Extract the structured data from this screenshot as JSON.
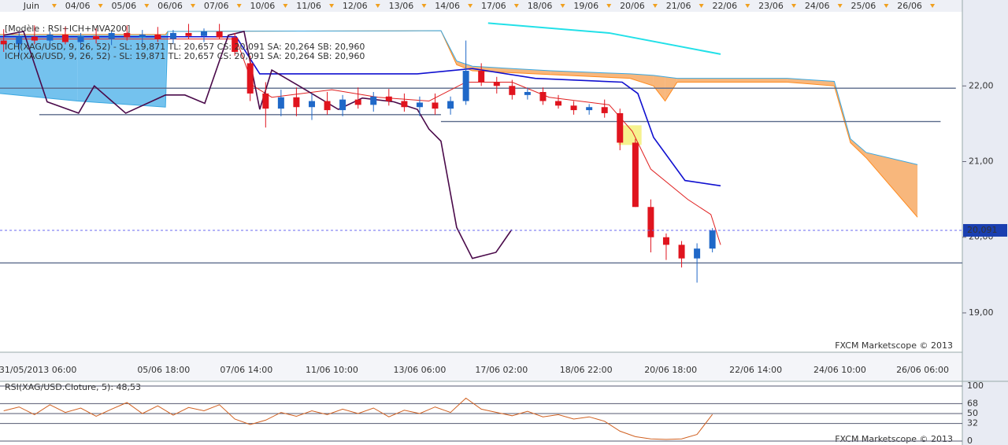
{
  "chart_data": {
    "type": "candlestick",
    "title": "[Modèle : RSI+ICH+MVA200]",
    "legend_lines": [
      {
        "text": "ICH(XAG/USD, 9, 26, 52) - SL: 19,871  TL: 20,657  CS: 20,091  SA: 20,264  SB: 20,960",
        "color": "#c0102a"
      },
      {
        "text": "ICH(XAG/USD, 9, 26, 52) - SL: 19,871  TL: 20,657  CS: 20,091  SA: 20,264  SB: 20,960",
        "color": "#1a1aa8"
      }
    ],
    "xlim": [
      -0.68,
      20.14
    ],
    "ylim": [
      18.48,
      22.98
    ],
    "yticks": [
      {
        "value": 22,
        "label": "22,00"
      },
      {
        "value": 21,
        "label": "21,00"
      },
      {
        "value": 20,
        "label": "20,00"
      },
      {
        "value": 19,
        "label": "19,00"
      }
    ],
    "x_top_ticks": [
      {
        "value": 0,
        "label": "Juin"
      },
      {
        "value": 1,
        "label": "04/06"
      },
      {
        "value": 2,
        "label": "05/06"
      },
      {
        "value": 3,
        "label": "06/06"
      },
      {
        "value": 4,
        "label": "07/06"
      },
      {
        "value": 5,
        "label": "10/06"
      },
      {
        "value": 6,
        "label": "11/06"
      },
      {
        "value": 7,
        "label": "12/06"
      },
      {
        "value": 8,
        "label": "13/06"
      },
      {
        "value": 9,
        "label": "14/06"
      },
      {
        "value": 10,
        "label": "17/06"
      },
      {
        "value": 11,
        "label": "18/06"
      },
      {
        "value": 12,
        "label": "19/06"
      },
      {
        "value": 13,
        "label": "20/06"
      },
      {
        "value": 14,
        "label": "21/06"
      },
      {
        "value": 15,
        "label": "22/06"
      },
      {
        "value": 16,
        "label": "23/06"
      },
      {
        "value": 17,
        "label": "24/06"
      },
      {
        "value": 18,
        "label": "25/06"
      },
      {
        "value": 19,
        "label": "26/06"
      }
    ],
    "x_bottom_ticks": [
      {
        "value": 0.14,
        "label": "31/05/2013 06:00"
      },
      {
        "value": 2.86,
        "label": "05/06 18:00"
      },
      {
        "value": 4.65,
        "label": "07/06 14:00"
      },
      {
        "value": 6.5,
        "label": "11/06 10:00"
      },
      {
        "value": 8.4,
        "label": "13/06 06:00"
      },
      {
        "value": 10.17,
        "label": "17/06 02:00"
      },
      {
        "value": 12.0,
        "label": "18/06 22:00"
      },
      {
        "value": 13.83,
        "label": "20/06 18:00"
      },
      {
        "value": 15.67,
        "label": "22/06 14:00"
      },
      {
        "value": 17.49,
        "label": "24/06 10:00"
      },
      {
        "value": 19.28,
        "label": "26/06 06:00"
      }
    ],
    "candles": {
      "up_color": "#1f68c8",
      "down_color": "#e0141e",
      "x": [
        -0.6,
        -0.267,
        0.067,
        0.4,
        0.733,
        1.067,
        1.4,
        1.733,
        2.067,
        2.4,
        2.733,
        3.067,
        3.4,
        3.733,
        4.067,
        4.4,
        4.733,
        5.067,
        5.4,
        5.733,
        6.067,
        6.4,
        6.733,
        7.067,
        7.4,
        7.733,
        8.067,
        8.4,
        8.733,
        9.067,
        9.4,
        9.733,
        10.067,
        10.4,
        10.733,
        11.067,
        11.4,
        11.733,
        12.067,
        12.4,
        12.733,
        13.067,
        13.4,
        13.733,
        14.067,
        14.4,
        14.733
      ],
      "open": [
        22.6,
        22.55,
        22.65,
        22.6,
        22.68,
        22.58,
        22.66,
        22.62,
        22.7,
        22.64,
        22.68,
        22.62,
        22.7,
        22.66,
        22.72,
        22.64,
        22.3,
        21.9,
        21.7,
        21.85,
        21.72,
        21.8,
        21.68,
        21.82,
        21.75,
        21.86,
        21.8,
        21.72,
        21.78,
        21.7,
        21.8,
        22.2,
        22.05,
        22.0,
        21.88,
        21.92,
        21.8,
        21.74,
        21.68,
        21.72,
        21.64,
        21.25,
        20.4,
        20.0,
        19.9,
        19.72,
        19.85
      ],
      "high": [
        22.75,
        22.7,
        22.8,
        22.72,
        22.78,
        22.7,
        22.76,
        22.72,
        22.8,
        22.74,
        22.78,
        22.74,
        22.82,
        22.76,
        22.82,
        22.7,
        22.4,
        22.05,
        21.95,
        21.98,
        21.9,
        21.92,
        21.88,
        21.98,
        21.92,
        21.96,
        21.9,
        21.86,
        21.9,
        21.86,
        22.6,
        22.3,
        22.12,
        22.08,
        21.98,
        21.98,
        21.88,
        21.8,
        21.76,
        21.82,
        21.7,
        21.3,
        20.5,
        20.05,
        19.95,
        19.92,
        20.12
      ],
      "low": [
        22.45,
        22.4,
        22.55,
        22.5,
        22.55,
        22.48,
        22.56,
        22.54,
        22.6,
        22.56,
        22.58,
        22.55,
        22.62,
        22.58,
        22.62,
        22.4,
        21.8,
        21.45,
        21.6,
        21.6,
        21.55,
        21.62,
        21.6,
        21.7,
        21.66,
        21.74,
        21.66,
        21.6,
        21.62,
        21.62,
        21.75,
        22.0,
        21.9,
        21.82,
        21.82,
        21.75,
        21.7,
        21.62,
        21.62,
        21.58,
        21.15,
        20.4,
        19.8,
        19.7,
        19.6,
        19.4,
        19.8
      ],
      "close": [
        22.55,
        22.65,
        22.6,
        22.68,
        22.58,
        22.66,
        22.62,
        22.7,
        22.64,
        22.68,
        22.62,
        22.7,
        22.66,
        22.72,
        22.64,
        22.45,
        21.9,
        21.7,
        21.85,
        21.72,
        21.8,
        21.68,
        21.82,
        21.75,
        21.86,
        21.8,
        21.72,
        21.78,
        21.7,
        21.8,
        22.2,
        22.05,
        22.0,
        21.88,
        21.92,
        21.8,
        21.74,
        21.68,
        21.72,
        21.64,
        21.25,
        20.4,
        20.0,
        19.9,
        19.72,
        19.85,
        20.09
      ]
    },
    "cloud": {
      "up_color": "#74c2ee",
      "down_color": "#f8b77c",
      "sa_color": "#ff8a1e",
      "sb_color": "#3aa7e0",
      "x": [
        -0.68,
        1.0,
        2.9,
        2.95,
        8.86,
        9.2,
        9.54,
        11.24,
        12.95,
        13.46,
        13.71,
        13.97,
        16.35,
        17.37,
        17.72,
        18.06,
        19.17
      ],
      "sa": [
        22.68,
        22.68,
        22.68,
        22.72,
        22.73,
        22.28,
        22.2,
        22.15,
        22.1,
        22.0,
        21.8,
        22.05,
        22.05,
        22.0,
        21.25,
        21.05,
        20.264
      ],
      "sb": [
        21.9,
        21.8,
        21.72,
        22.72,
        22.73,
        22.33,
        22.26,
        22.2,
        22.16,
        22.14,
        22.12,
        22.1,
        22.1,
        22.06,
        21.3,
        21.12,
        20.96
      ]
    },
    "lines": [
      {
        "color": "#1010d0",
        "width": 1.6,
        "x": [
          -0.68,
          4.43,
          4.94,
          8.35,
          9.54,
          10.9,
          12.78,
          13.12,
          13.46,
          14.14,
          14.91
        ],
        "values": [
          22.65,
          22.65,
          22.16,
          22.16,
          22.23,
          22.1,
          22.05,
          21.9,
          21.32,
          20.75,
          20.68
        ]
      },
      {
        "color": "#e02020",
        "width": 1,
        "x": [
          -0.68,
          4.43,
          4.8,
          5.2,
          6.5,
          7.5,
          8.6,
          9.4,
          10.4,
          11.2,
          12.5,
          13.0,
          13.4,
          14.2,
          14.7,
          14.91
        ],
        "values": [
          22.62,
          22.62,
          22.0,
          21.85,
          21.95,
          21.85,
          21.8,
          22.05,
          22.05,
          21.85,
          21.75,
          21.4,
          20.9,
          20.5,
          20.3,
          19.9
        ]
      },
      {
        "color": "#4a0a4a",
        "width": 1.6,
        "x": [
          -0.6,
          -0.17,
          0.34,
          1.02,
          1.36,
          2.04,
          2.9,
          3.32,
          3.75,
          4.26,
          4.6,
          4.94,
          5.2,
          5.79,
          6.64,
          7.16,
          7.84,
          8.35,
          8.6,
          8.86,
          9.2,
          9.54,
          10.05,
          10.39
        ],
        "values": [
          22.67,
          22.72,
          21.79,
          21.64,
          22.0,
          21.64,
          21.88,
          21.88,
          21.77,
          22.67,
          22.72,
          21.69,
          22.21,
          22.0,
          21.69,
          21.84,
          21.79,
          21.69,
          21.43,
          21.27,
          20.13,
          19.72,
          19.8,
          20.1
        ]
      },
      {
        "color": "#22e0e8",
        "width": 2,
        "x": [
          9.88,
          12.5,
          14.91
        ],
        "values": [
          22.83,
          22.7,
          22.42
        ]
      }
    ],
    "levels": [
      {
        "value": 21.97,
        "x": [
          -0.68,
          20.0
        ],
        "color": "#5a6a8a"
      },
      {
        "value": 21.62,
        "x": [
          0.17,
          8.86
        ],
        "color": "#5a6a8a"
      },
      {
        "value": 21.53,
        "x": [
          8.86,
          19.67
        ],
        "color": "#5a6a8a"
      },
      {
        "value": 19.66,
        "x": [
          -0.68,
          20.14
        ],
        "color": "#5a6a8a"
      }
    ],
    "highlight": {
      "x": [
        12.7,
        13.2
      ],
      "y": [
        21.48,
        21.22
      ],
      "color": "#f4f07a"
    },
    "last_price": {
      "value": 20.091,
      "label": "20,091"
    },
    "watermark": "FXCM Marketscope © 2013",
    "rsi": {
      "title": "RSI(XAG/USD.Cloture, 5): 48,53",
      "color": "#d06020",
      "ylim": [
        0,
        100
      ],
      "yticks": [
        100,
        68,
        50,
        32,
        0
      ],
      "values": [
        55,
        62,
        48,
        66,
        52,
        60,
        45,
        58,
        70,
        50,
        64,
        47,
        61,
        55,
        66,
        40,
        30,
        38,
        52,
        45,
        55,
        48,
        58,
        50,
        60,
        44,
        56,
        50,
        62,
        52,
        78,
        58,
        52,
        46,
        54,
        44,
        48,
        40,
        44,
        36,
        18,
        8,
        4,
        3,
        4,
        12,
        48.53
      ],
      "watermark": "FXCM Marketscope © 2013"
    }
  }
}
